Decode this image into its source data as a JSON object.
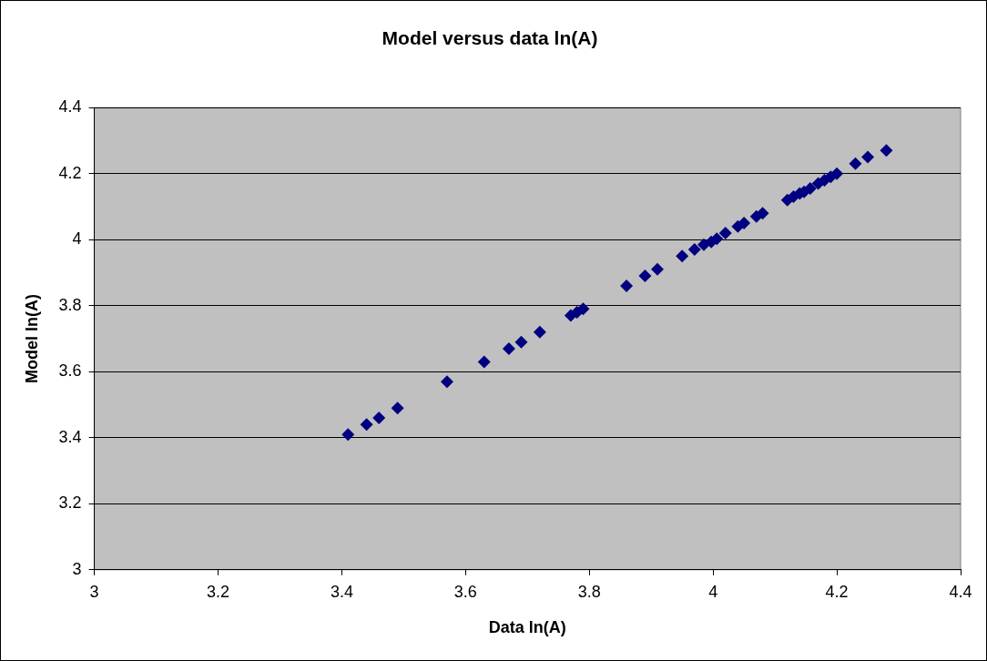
{
  "chart_data": {
    "type": "scatter",
    "title": "Model versus data ln(A)",
    "xlabel": "Data ln(A)",
    "ylabel": "Model ln(A)",
    "x": [
      3.41,
      3.44,
      3.46,
      3.49,
      3.57,
      3.63,
      3.67,
      3.69,
      3.72,
      3.77,
      3.78,
      3.79,
      3.86,
      3.89,
      3.91,
      3.95,
      3.97,
      3.985,
      3.997,
      4.006,
      4.02,
      4.04,
      4.05,
      4.07,
      4.08,
      4.12,
      4.13,
      4.14,
      4.147,
      4.157,
      4.17,
      4.18,
      4.19,
      4.2,
      4.23,
      4.25,
      4.28
    ],
    "series": [
      {
        "color": "#000080",
        "values": [
          3.41,
          3.44,
          3.46,
          3.49,
          3.57,
          3.63,
          3.67,
          3.69,
          3.72,
          3.77,
          3.78,
          3.79,
          3.86,
          3.89,
          3.91,
          3.95,
          3.97,
          3.985,
          3.993,
          4.003,
          4.02,
          4.04,
          4.05,
          4.07,
          4.08,
          4.12,
          4.13,
          4.14,
          4.145,
          4.155,
          4.17,
          4.18,
          4.19,
          4.2,
          4.23,
          4.25,
          4.27
        ]
      }
    ],
    "xlim": [
      3,
      4.4
    ],
    "xticks": [
      3,
      3.2,
      3.4,
      3.6,
      3.8,
      4,
      4.2,
      4.4
    ],
    "ylim": [
      3,
      4.4
    ],
    "yticks": [
      3,
      3.2,
      3.4,
      3.6,
      3.8,
      4,
      4.2,
      4.4
    ],
    "grid": "y",
    "legend": false,
    "marker": "diamond"
  }
}
